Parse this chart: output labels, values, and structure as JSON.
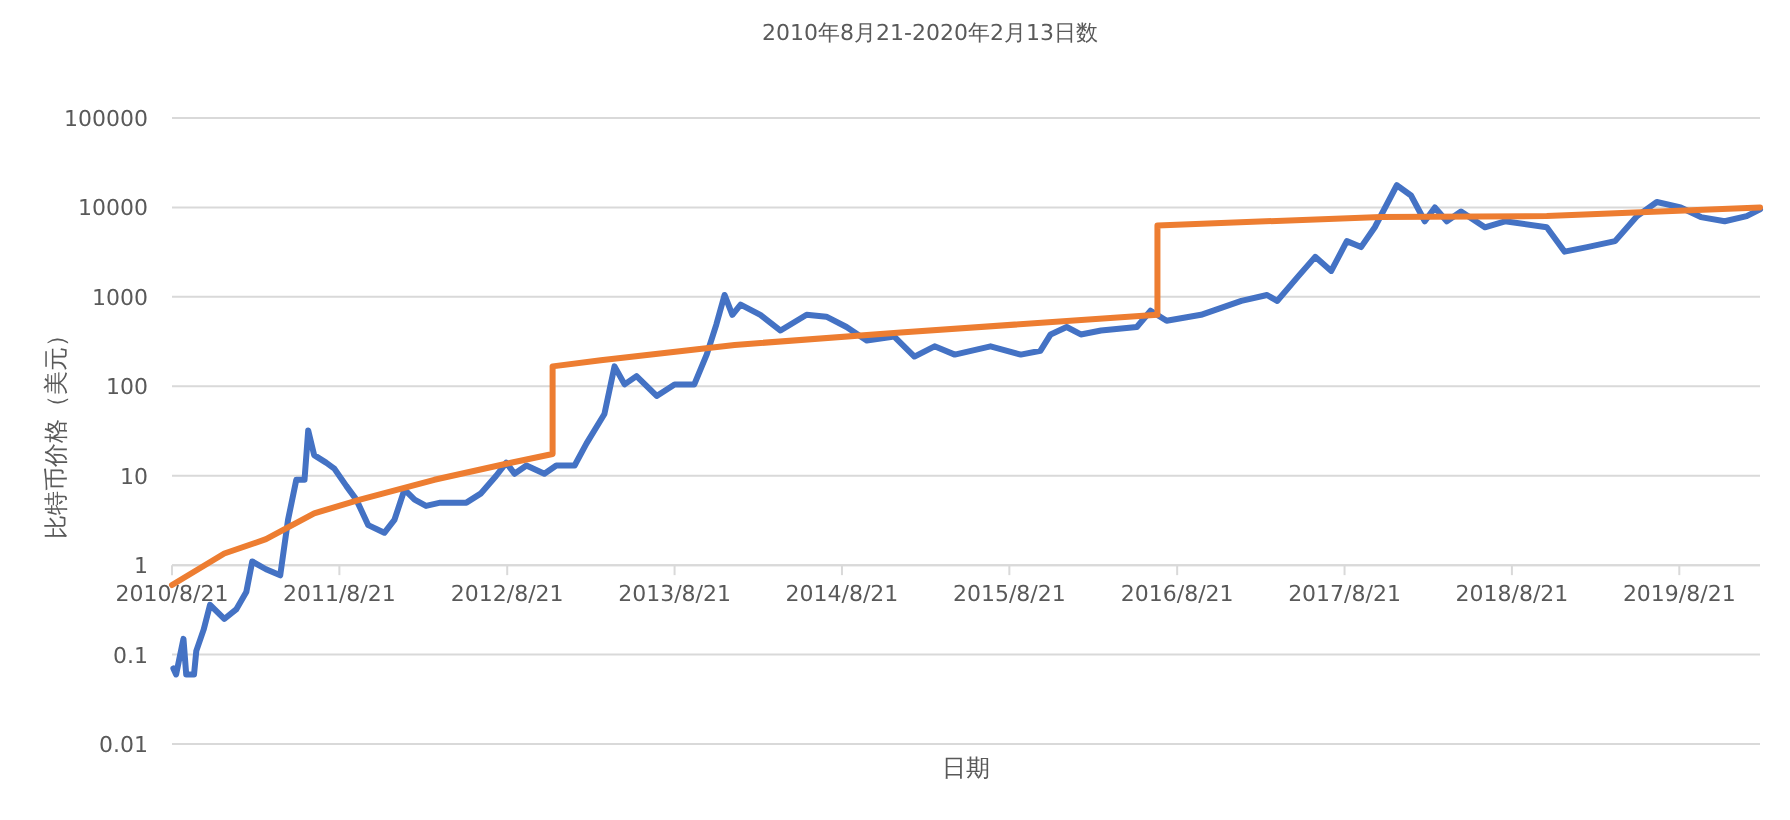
{
  "chart_data": {
    "type": "line",
    "subtitle": "2010年8月21-2020年2月13日数",
    "xlabel": "日期",
    "ylabel": "比特币价格（美元）",
    "log": "y",
    "grid": "y",
    "xlim": [
      "2010-08-21",
      "2020-02-13"
    ],
    "xticks": [
      {
        "value": "2010-08-21",
        "label": "2010/8/21"
      },
      {
        "value": "2011-08-21",
        "label": "2011/8/21"
      },
      {
        "value": "2012-08-21",
        "label": "2012/8/21"
      },
      {
        "value": "2013-08-21",
        "label": "2013/8/21"
      },
      {
        "value": "2014-08-21",
        "label": "2014/8/21"
      },
      {
        "value": "2015-08-21",
        "label": "2015/8/21"
      },
      {
        "value": "2016-08-21",
        "label": "2016/8/21"
      },
      {
        "value": "2017-08-21",
        "label": "2017/8/21"
      },
      {
        "value": "2018-08-21",
        "label": "2018/8/21"
      },
      {
        "value": "2019-08-21",
        "label": "2019/8/21"
      }
    ],
    "ylim": [
      0.01,
      100000
    ],
    "yticks": [
      0.01,
      0.1,
      1,
      10,
      100,
      1000,
      10000,
      100000
    ],
    "series": [
      {
        "color": "#4472c4",
        "x": [
          "2010-08-24",
          "2010-08-30",
          "2010-09-15",
          "2010-09-21",
          "2010-10-08",
          "2010-10-13",
          "2010-10-29",
          "2010-11-12",
          "2010-12-13",
          "2011-01-08",
          "2011-01-30",
          "2011-02-12",
          "2011-03-14",
          "2011-04-14",
          "2011-05-01",
          "2011-05-19",
          "2011-06-06",
          "2011-06-14",
          "2011-06-27",
          "2011-07-23",
          "2011-08-10",
          "2011-09-05",
          "2011-09-27",
          "2011-10-23",
          "2011-11-27",
          "2011-12-19",
          "2012-01-10",
          "2012-02-01",
          "2012-02-26",
          "2012-03-28",
          "2012-05-24",
          "2012-06-24",
          "2012-07-28",
          "2012-08-19",
          "2012-09-06",
          "2012-10-02",
          "2012-11-10",
          "2012-12-06",
          "2013-01-15",
          "2013-02-10",
          "2013-03-21",
          "2013-04-12",
          "2013-05-04",
          "2013-05-30",
          "2013-07-13",
          "2013-08-21",
          "2013-10-03",
          "2013-10-30",
          "2013-11-20",
          "2013-12-08",
          "2013-12-25",
          "2014-01-12",
          "2014-02-24",
          "2014-04-09",
          "2014-06-05",
          "2014-07-18",
          "2014-08-31",
          "2014-10-14",
          "2014-12-13",
          "2015-01-26",
          "2015-03-11",
          "2015-04-24",
          "2015-07-11",
          "2015-09-15",
          "2015-10-28",
          "2015-11-19",
          "2015-12-24",
          "2016-01-24",
          "2016-03-08",
          "2016-05-25",
          "2016-06-24",
          "2016-07-29",
          "2016-10-12",
          "2017-01-08",
          "2017-03-05",
          "2017-03-27",
          "2017-05-10",
          "2017-06-18",
          "2017-07-23",
          "2017-08-26",
          "2017-09-26",
          "2017-10-26",
          "2017-12-13",
          "2018-01-13",
          "2018-02-12",
          "2018-03-06",
          "2018-04-01",
          "2018-05-02",
          "2018-06-23",
          "2018-08-06",
          "2018-11-05",
          "2018-12-14",
          "2019-02-01",
          "2019-04-03",
          "2019-05-21",
          "2019-07-03",
          "2019-08-24",
          "2019-10-07",
          "2019-11-28",
          "2020-01-15",
          "2020-02-13"
        ],
        "values": [
          0.07,
          0.06,
          0.15,
          0.06,
          0.06,
          0.11,
          0.19,
          0.36,
          0.25,
          0.32,
          0.5,
          1.1,
          0.9,
          0.77,
          3.2,
          9,
          9,
          32,
          17,
          14,
          12,
          7.7,
          5.4,
          2.8,
          2.3,
          3.2,
          7,
          5.4,
          4.6,
          5,
          5,
          6.3,
          10,
          14,
          10.5,
          13,
          10.5,
          13,
          13,
          23,
          49,
          167,
          105,
          130,
          78,
          105,
          105,
          226,
          490,
          1050,
          630,
          820,
          630,
          420,
          630,
          600,
          460,
          325,
          360,
          215,
          280,
          226,
          280,
          226,
          250,
          380,
          460,
          380,
          420,
          460,
          700,
          540,
          630,
          900,
          1050,
          900,
          1650,
          2800,
          1950,
          4200,
          3600,
          6000,
          17700,
          13600,
          7000,
          10000,
          7000,
          9000,
          6000,
          7000,
          6000,
          3200,
          3600,
          4200,
          8000,
          11500,
          10000,
          7800,
          7000,
          8000,
          9500
        ]
      },
      {
        "color": "#ed7d31",
        "x": [
          "2010-08-21",
          "2010-12-13",
          "2011-03-14",
          "2011-06-27",
          "2011-10-05",
          "2012-03-15",
          "2012-08-19",
          "2012-11-28",
          "2012-11-28",
          "2013-03-13",
          "2013-12-30",
          "2014-12-27",
          "2016-07-09",
          "2016-07-09",
          "2017-11-08",
          "2018-11-05",
          "2020-02-13"
        ],
        "values": [
          0.6,
          1.35,
          1.95,
          3.8,
          5.4,
          9,
          13.6,
          17.5,
          167,
          195,
          290,
          400,
          630,
          6300,
          7800,
          8000,
          10000
        ]
      }
    ]
  }
}
